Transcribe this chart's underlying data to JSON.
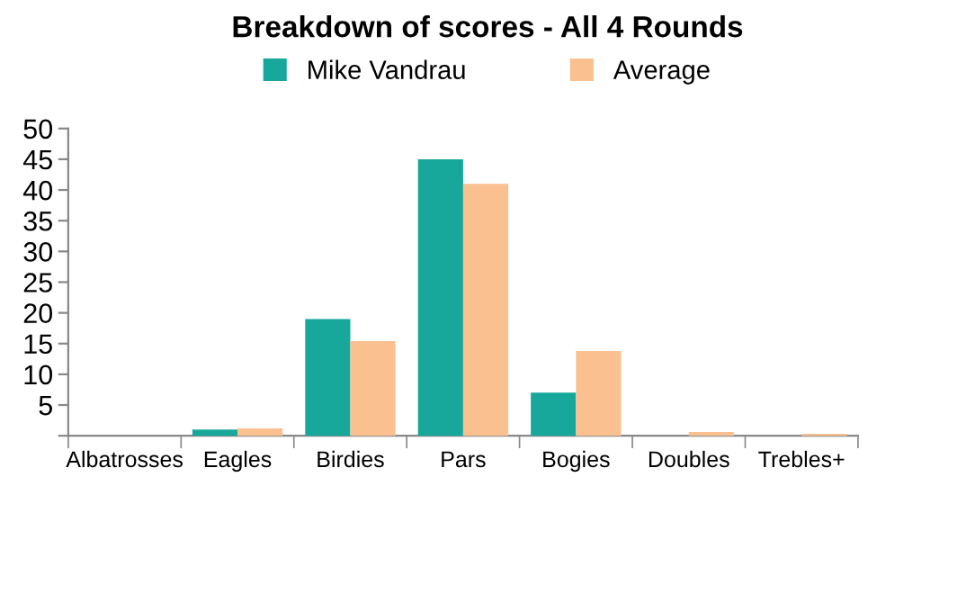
{
  "chart_data": {
    "type": "bar",
    "title": "Breakdown of scores - All 4 Rounds",
    "categories": [
      "Albatrosses",
      "Eagles",
      "Birdies",
      "Pars",
      "Bogies",
      "Doubles",
      "Trebles+"
    ],
    "series": [
      {
        "name": "Mike Vandrau",
        "color": "#17a89b",
        "values": [
          0,
          1,
          19,
          45,
          7,
          0,
          0
        ]
      },
      {
        "name": "Average",
        "color": "#fac08f",
        "values": [
          0,
          1.2,
          15.4,
          41,
          13.8,
          0.6,
          0.3
        ]
      }
    ],
    "ylim": [
      0,
      50
    ],
    "yticks": [
      {
        "value": 0,
        "label": null
      },
      5,
      10,
      15,
      20,
      25,
      30,
      35,
      40,
      45,
      50
    ],
    "grid": false,
    "legend": "top"
  }
}
